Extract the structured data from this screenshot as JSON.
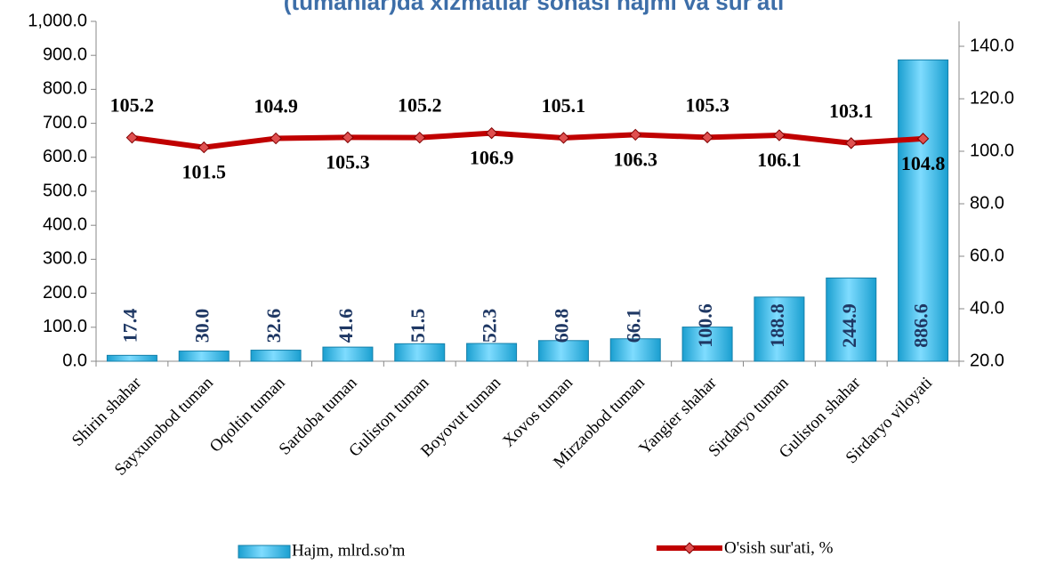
{
  "chart_data": {
    "type": "bar_line",
    "title": "(tumanlar)da xizmatlar sohasi hajmi va sur'ati",
    "categories": [
      "Shirin shahar",
      "Sayxunobod tuman",
      "Oqoltin tuman",
      "Sardoba tuman",
      "Guliston tuman",
      "Boyovut tuman",
      "Xovos tuman",
      "Mirzaobod tuman",
      "Yangier shahar",
      "Sirdaryo tuman",
      "Guliston shahar",
      "Sirdaryo viloyati"
    ],
    "series": [
      {
        "name": "Hajm, mlrd.so'm",
        "color": "#29b6e8",
        "values": [
          17.4,
          30.0,
          32.6,
          41.6,
          51.5,
          52.3,
          60.8,
          66.1,
          100.6,
          188.8,
          244.9,
          886.6
        ],
        "value_labels": [
          "17.4",
          "30.0",
          "32.6",
          "41.6",
          "51.5",
          "52.3",
          "60.8",
          "66.1",
          "100.6",
          "188.8",
          "244.9",
          "886.6"
        ]
      },
      {
        "name": "O'sish sur'ati, %",
        "color": "#c00000",
        "axis": "y2",
        "values": [
          105.2,
          101.5,
          104.9,
          105.3,
          105.2,
          106.9,
          105.1,
          106.3,
          105.3,
          106.1,
          103.1,
          104.8
        ],
        "value_labels": [
          "105.2",
          "101.5",
          "104.9",
          "105.3",
          "105.2",
          "106.9",
          "105.1",
          "106.3",
          "105.3",
          "106.1",
          "103.1",
          "104.8"
        ]
      }
    ],
    "ylim": [
      0,
      1000
    ],
    "yticks": [
      {
        "value": 0,
        "label": "0.0"
      },
      {
        "value": 100,
        "label": "100.0"
      },
      {
        "value": 200,
        "label": "200.0"
      },
      {
        "value": 300,
        "label": "300.0"
      },
      {
        "value": 400,
        "label": "400.0"
      },
      {
        "value": 500,
        "label": "500.0"
      },
      {
        "value": 600,
        "label": "600.0"
      },
      {
        "value": 700,
        "label": "700.0"
      },
      {
        "value": 800,
        "label": "800.0"
      },
      {
        "value": 900,
        "label": "900.0"
      },
      {
        "value": 1000,
        "label": "1,000.0"
      }
    ],
    "y2lim": [
      20,
      149.5
    ],
    "y2ticks": [
      {
        "value": 20,
        "label": "20.0"
      },
      {
        "value": 40,
        "label": "40.0"
      },
      {
        "value": 60,
        "label": "60.0"
      },
      {
        "value": 80,
        "label": "80.0"
      },
      {
        "value": 100,
        "label": "100.0"
      },
      {
        "value": 120,
        "label": "120.0"
      },
      {
        "value": 140,
        "label": "140.0"
      }
    ],
    "legend": "bottom"
  }
}
